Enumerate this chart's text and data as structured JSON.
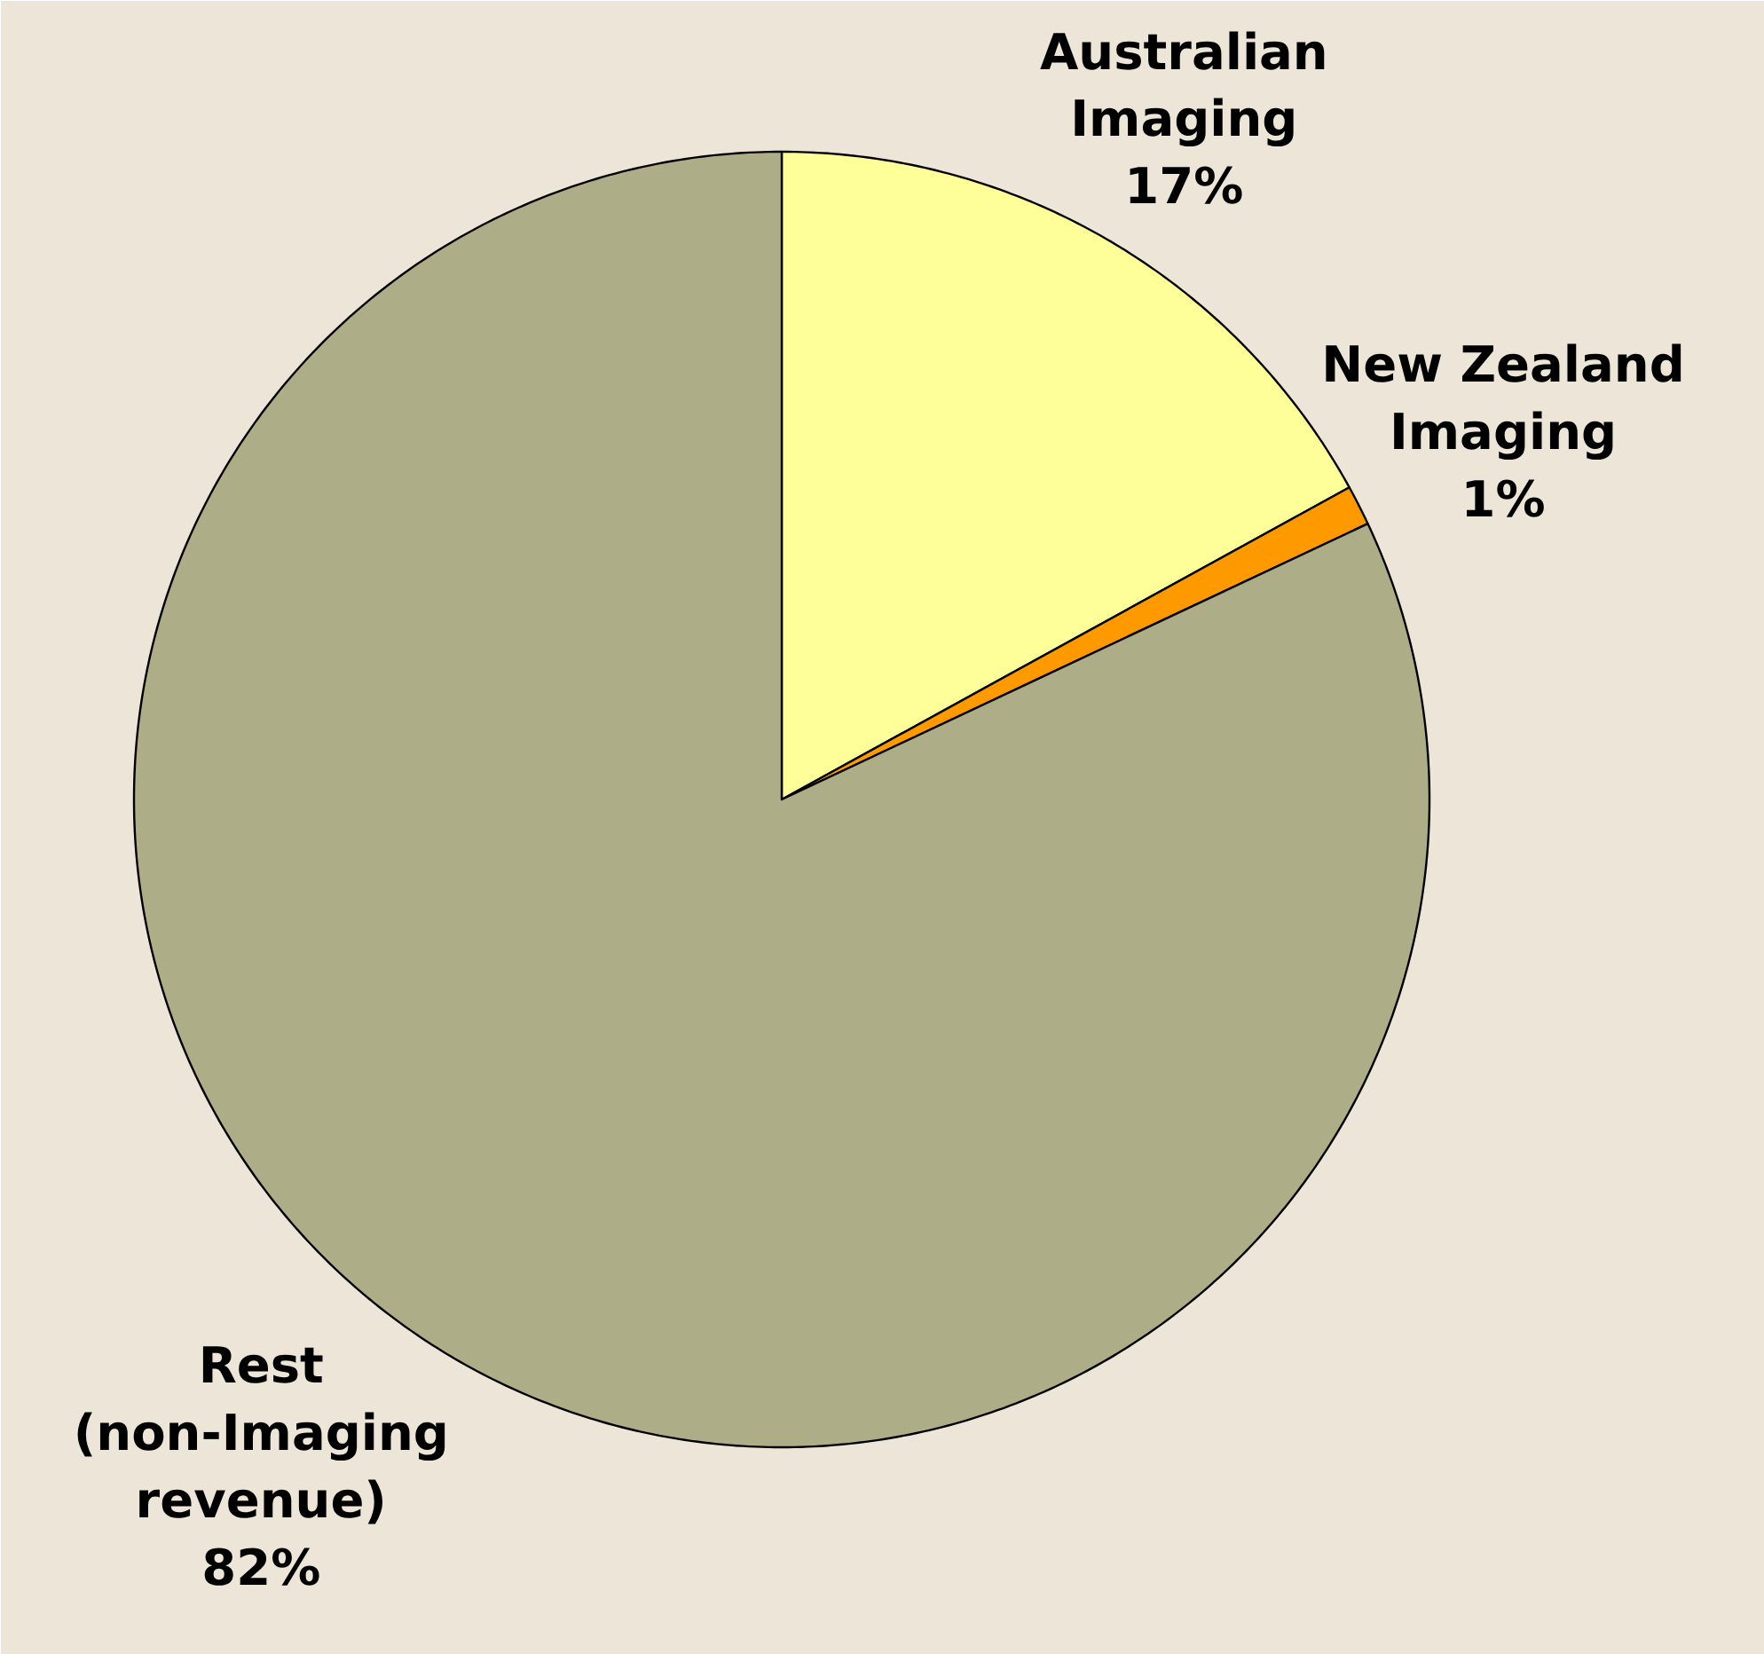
{
  "chart_data": {
    "type": "pie",
    "categories": [
      "Australian Imaging",
      "New Zealand Imaging",
      "Rest (non-Imaging revenue)"
    ],
    "values": [
      17,
      1,
      82
    ],
    "colors": [
      "#ffff99",
      "#ff9900",
      "#adad88"
    ],
    "value_labels": [
      "17%",
      "1%",
      "82%"
    ]
  }
}
